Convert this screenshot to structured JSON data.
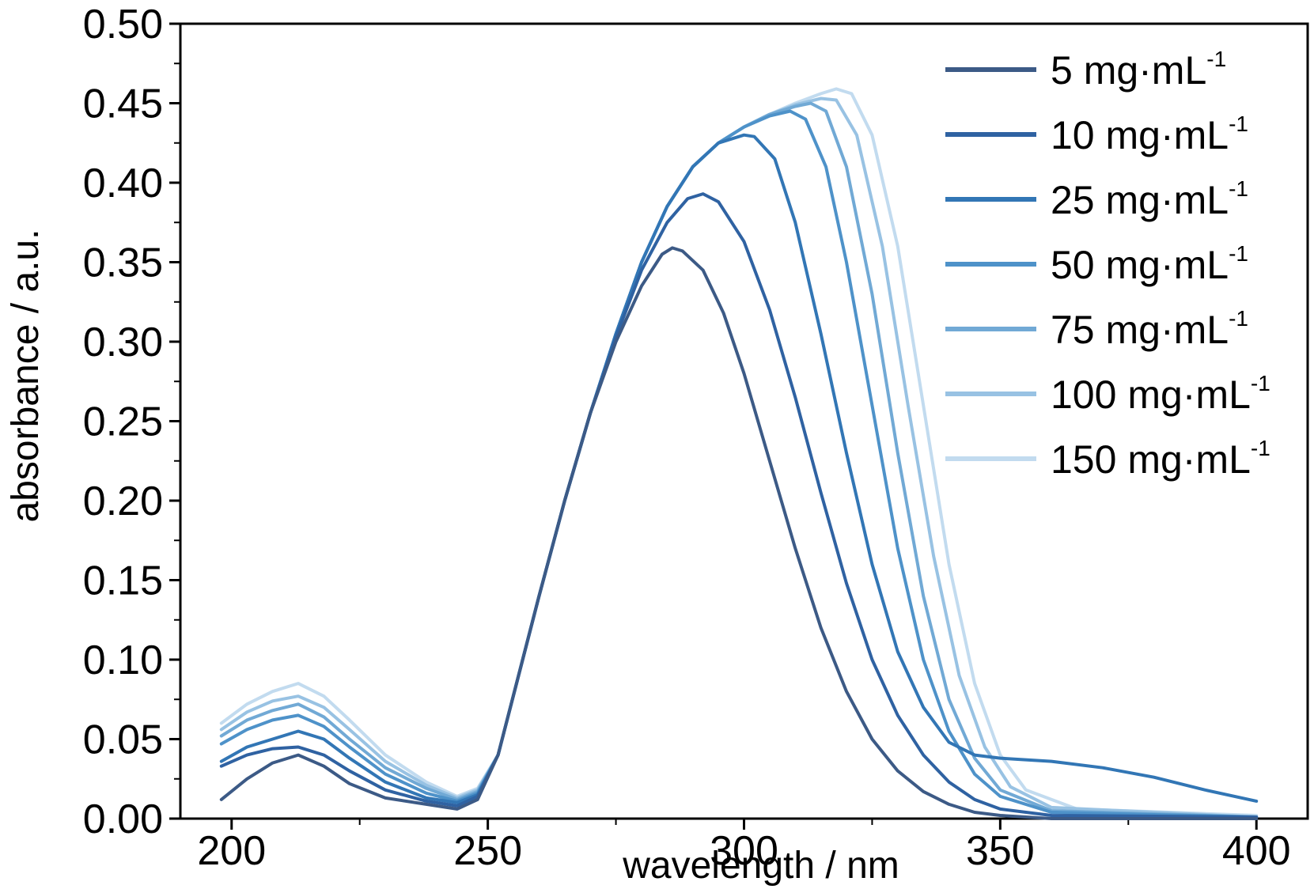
{
  "chart_data": {
    "type": "line",
    "title": "",
    "xlabel": "wavelength / nm",
    "ylabel": "absorbance / a.u.",
    "xlim": [
      190,
      410
    ],
    "ylim": [
      0,
      0.5
    ],
    "x_ticks": [
      200,
      250,
      300,
      350,
      400
    ],
    "x_tick_labels": [
      "200",
      "250",
      "300",
      "350",
      "400"
    ],
    "y_ticks": [
      0,
      0.05,
      0.1,
      0.15,
      0.2,
      0.25,
      0.3,
      0.35,
      0.4,
      0.45,
      0.5
    ],
    "y_tick_labels": [
      "0.00",
      "0.05",
      "0.10",
      "0.15",
      "0.20",
      "0.25",
      "0.30",
      "0.35",
      "0.40",
      "0.45",
      "0.50"
    ],
    "grid": false,
    "legend_position": "top-right",
    "series": [
      {
        "name": "5 mg·mL",
        "superscript": "-1",
        "color": "#3c5a86",
        "points": [
          [
            198,
            0.012
          ],
          [
            203,
            0.025
          ],
          [
            208,
            0.035
          ],
          [
            213,
            0.04
          ],
          [
            218,
            0.033
          ],
          [
            223,
            0.022
          ],
          [
            230,
            0.013
          ],
          [
            238,
            0.009
          ],
          [
            244,
            0.006
          ],
          [
            248,
            0.012
          ],
          [
            252,
            0.04
          ],
          [
            256,
            0.09
          ],
          [
            260,
            0.14
          ],
          [
            265,
            0.2
          ],
          [
            270,
            0.255
          ],
          [
            275,
            0.3
          ],
          [
            280,
            0.335
          ],
          [
            284,
            0.355
          ],
          [
            286,
            0.359
          ],
          [
            288,
            0.357
          ],
          [
            292,
            0.345
          ],
          [
            296,
            0.318
          ],
          [
            300,
            0.28
          ],
          [
            305,
            0.225
          ],
          [
            310,
            0.17
          ],
          [
            315,
            0.12
          ],
          [
            320,
            0.08
          ],
          [
            325,
            0.05
          ],
          [
            330,
            0.03
          ],
          [
            335,
            0.017
          ],
          [
            340,
            0.009
          ],
          [
            345,
            0.004
          ],
          [
            350,
            0.002
          ],
          [
            360,
            0.0
          ],
          [
            400,
            0.0
          ]
        ]
      },
      {
        "name": "10 mg·mL",
        "superscript": "-1",
        "color": "#2f62a2",
        "points": [
          [
            198,
            0.033
          ],
          [
            203,
            0.04
          ],
          [
            208,
            0.044
          ],
          [
            213,
            0.045
          ],
          [
            218,
            0.04
          ],
          [
            223,
            0.03
          ],
          [
            230,
            0.018
          ],
          [
            238,
            0.011
          ],
          [
            244,
            0.008
          ],
          [
            248,
            0.014
          ],
          [
            252,
            0.04
          ],
          [
            256,
            0.09
          ],
          [
            260,
            0.14
          ],
          [
            265,
            0.2
          ],
          [
            270,
            0.255
          ],
          [
            275,
            0.303
          ],
          [
            280,
            0.345
          ],
          [
            285,
            0.375
          ],
          [
            289,
            0.39
          ],
          [
            292,
            0.393
          ],
          [
            295,
            0.388
          ],
          [
            300,
            0.363
          ],
          [
            305,
            0.32
          ],
          [
            310,
            0.265
          ],
          [
            315,
            0.205
          ],
          [
            320,
            0.148
          ],
          [
            325,
            0.1
          ],
          [
            330,
            0.065
          ],
          [
            335,
            0.04
          ],
          [
            340,
            0.023
          ],
          [
            345,
            0.012
          ],
          [
            350,
            0.006
          ],
          [
            360,
            0.002
          ],
          [
            400,
            0.001
          ]
        ]
      },
      {
        "name": "25 mg·mL",
        "superscript": "-1",
        "color": "#3276b5",
        "points": [
          [
            198,
            0.036
          ],
          [
            203,
            0.045
          ],
          [
            208,
            0.05
          ],
          [
            213,
            0.055
          ],
          [
            218,
            0.05
          ],
          [
            223,
            0.038
          ],
          [
            230,
            0.023
          ],
          [
            238,
            0.013
          ],
          [
            244,
            0.01
          ],
          [
            248,
            0.015
          ],
          [
            252,
            0.04
          ],
          [
            256,
            0.09
          ],
          [
            260,
            0.14
          ],
          [
            265,
            0.2
          ],
          [
            270,
            0.255
          ],
          [
            275,
            0.305
          ],
          [
            280,
            0.35
          ],
          [
            285,
            0.385
          ],
          [
            290,
            0.41
          ],
          [
            295,
            0.425
          ],
          [
            300,
            0.43
          ],
          [
            302,
            0.429
          ],
          [
            306,
            0.415
          ],
          [
            310,
            0.375
          ],
          [
            315,
            0.305
          ],
          [
            320,
            0.23
          ],
          [
            325,
            0.16
          ],
          [
            330,
            0.105
          ],
          [
            335,
            0.07
          ],
          [
            340,
            0.048
          ],
          [
            345,
            0.04
          ],
          [
            350,
            0.038
          ],
          [
            360,
            0.036
          ],
          [
            370,
            0.032
          ],
          [
            380,
            0.026
          ],
          [
            390,
            0.018
          ],
          [
            400,
            0.011
          ]
        ]
      },
      {
        "name": "50 mg·mL",
        "superscript": "-1",
        "color": "#4e92c9",
        "points": [
          [
            198,
            0.047
          ],
          [
            203,
            0.056
          ],
          [
            208,
            0.062
          ],
          [
            213,
            0.065
          ],
          [
            218,
            0.058
          ],
          [
            223,
            0.045
          ],
          [
            230,
            0.028
          ],
          [
            238,
            0.016
          ],
          [
            244,
            0.011
          ],
          [
            248,
            0.016
          ],
          [
            252,
            0.04
          ],
          [
            256,
            0.09
          ],
          [
            260,
            0.14
          ],
          [
            265,
            0.2
          ],
          [
            270,
            0.255
          ],
          [
            275,
            0.305
          ],
          [
            280,
            0.35
          ],
          [
            285,
            0.385
          ],
          [
            290,
            0.41
          ],
          [
            295,
            0.425
          ],
          [
            300,
            0.435
          ],
          [
            305,
            0.442
          ],
          [
            309,
            0.445
          ],
          [
            312,
            0.44
          ],
          [
            316,
            0.41
          ],
          [
            320,
            0.35
          ],
          [
            325,
            0.26
          ],
          [
            330,
            0.17
          ],
          [
            335,
            0.1
          ],
          [
            340,
            0.055
          ],
          [
            345,
            0.028
          ],
          [
            350,
            0.014
          ],
          [
            360,
            0.004
          ],
          [
            400,
            0.001
          ]
        ]
      },
      {
        "name": "75 mg·mL",
        "superscript": "-1",
        "color": "#71a9d5",
        "points": [
          [
            198,
            0.052
          ],
          [
            203,
            0.062
          ],
          [
            208,
            0.068
          ],
          [
            213,
            0.072
          ],
          [
            218,
            0.064
          ],
          [
            223,
            0.05
          ],
          [
            230,
            0.032
          ],
          [
            238,
            0.019
          ],
          [
            244,
            0.012
          ],
          [
            248,
            0.017
          ],
          [
            252,
            0.04
          ],
          [
            256,
            0.09
          ],
          [
            260,
            0.14
          ],
          [
            265,
            0.2
          ],
          [
            270,
            0.255
          ],
          [
            275,
            0.305
          ],
          [
            280,
            0.35
          ],
          [
            285,
            0.385
          ],
          [
            290,
            0.41
          ],
          [
            295,
            0.425
          ],
          [
            300,
            0.435
          ],
          [
            305,
            0.443
          ],
          [
            310,
            0.448
          ],
          [
            313,
            0.45
          ],
          [
            316,
            0.445
          ],
          [
            320,
            0.41
          ],
          [
            325,
            0.33
          ],
          [
            330,
            0.23
          ],
          [
            335,
            0.14
          ],
          [
            340,
            0.075
          ],
          [
            345,
            0.038
          ],
          [
            350,
            0.018
          ],
          [
            360,
            0.005
          ],
          [
            400,
            0.001
          ]
        ]
      },
      {
        "name": "100 mg·mL",
        "superscript": "-1",
        "color": "#98c2e3",
        "points": [
          [
            198,
            0.056
          ],
          [
            203,
            0.067
          ],
          [
            208,
            0.074
          ],
          [
            213,
            0.077
          ],
          [
            218,
            0.07
          ],
          [
            223,
            0.056
          ],
          [
            230,
            0.036
          ],
          [
            238,
            0.021
          ],
          [
            244,
            0.013
          ],
          [
            248,
            0.018
          ],
          [
            252,
            0.04
          ],
          [
            256,
            0.09
          ],
          [
            260,
            0.14
          ],
          [
            265,
            0.2
          ],
          [
            270,
            0.255
          ],
          [
            275,
            0.305
          ],
          [
            280,
            0.35
          ],
          [
            285,
            0.385
          ],
          [
            290,
            0.41
          ],
          [
            295,
            0.425
          ],
          [
            300,
            0.435
          ],
          [
            305,
            0.443
          ],
          [
            310,
            0.449
          ],
          [
            315,
            0.453
          ],
          [
            318,
            0.452
          ],
          [
            322,
            0.43
          ],
          [
            327,
            0.36
          ],
          [
            332,
            0.26
          ],
          [
            337,
            0.165
          ],
          [
            342,
            0.09
          ],
          [
            347,
            0.045
          ],
          [
            352,
            0.02
          ],
          [
            360,
            0.007
          ],
          [
            400,
            0.001
          ]
        ]
      },
      {
        "name": "150 mg·mL",
        "superscript": "-1",
        "color": "#c2dbef",
        "points": [
          [
            198,
            0.06
          ],
          [
            203,
            0.072
          ],
          [
            208,
            0.08
          ],
          [
            213,
            0.085
          ],
          [
            218,
            0.077
          ],
          [
            223,
            0.062
          ],
          [
            230,
            0.04
          ],
          [
            238,
            0.023
          ],
          [
            244,
            0.014
          ],
          [
            248,
            0.019
          ],
          [
            252,
            0.04
          ],
          [
            256,
            0.09
          ],
          [
            260,
            0.14
          ],
          [
            265,
            0.2
          ],
          [
            270,
            0.255
          ],
          [
            275,
            0.305
          ],
          [
            280,
            0.35
          ],
          [
            285,
            0.385
          ],
          [
            290,
            0.41
          ],
          [
            295,
            0.425
          ],
          [
            300,
            0.435
          ],
          [
            305,
            0.443
          ],
          [
            310,
            0.45
          ],
          [
            315,
            0.456
          ],
          [
            318,
            0.459
          ],
          [
            321,
            0.456
          ],
          [
            325,
            0.43
          ],
          [
            330,
            0.36
          ],
          [
            335,
            0.26
          ],
          [
            340,
            0.16
          ],
          [
            345,
            0.085
          ],
          [
            350,
            0.04
          ],
          [
            355,
            0.018
          ],
          [
            365,
            0.006
          ],
          [
            400,
            0.002
          ]
        ]
      }
    ]
  }
}
